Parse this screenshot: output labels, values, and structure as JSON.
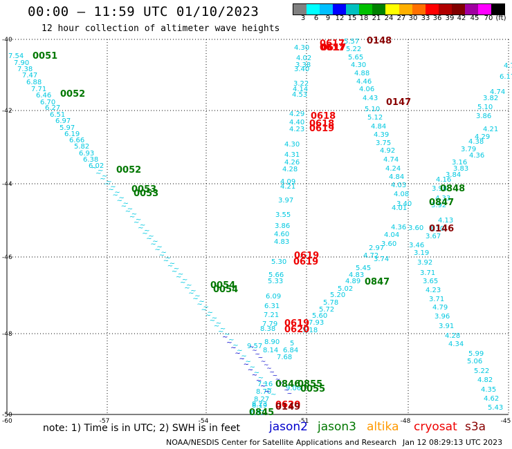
{
  "header": {
    "title": "00:00 – 11:59 UTC 01/10/2023",
    "subtitle": "12 hour collection of altimeter wave heights"
  },
  "scale": {
    "colors": [
      "#808080",
      "#00ffff",
      "#00bfff",
      "#0000ff",
      "#00c0c0",
      "#00c000",
      "#008000",
      "#ffff00",
      "#ffb000",
      "#ff7000",
      "#ff0000",
      "#b00000",
      "#800000",
      "#a000a0",
      "#ff00ff",
      "#000000"
    ],
    "labels": [
      "3",
      "6",
      "9",
      "12",
      "15",
      "18",
      "21",
      "24",
      "27",
      "30",
      "33",
      "36",
      "39",
      "42",
      "45",
      "70",
      "(ft)"
    ]
  },
  "map": {
    "lon_ticks": [
      "-57",
      "-54",
      "-51",
      "-48",
      "-45"
    ],
    "lat_ticks": [
      "-40",
      "-42",
      "-44",
      "-46",
      "-48",
      "-50"
    ],
    "corner_label": "-60"
  },
  "swh_values": [
    "7.54",
    "7.90",
    "7.38",
    "7.47",
    "6.88",
    "7.71",
    "6.46",
    "6.70",
    "6.27",
    "6.51",
    "6.97",
    "5.97",
    "6.19",
    "6.66",
    "5.82",
    "6.93",
    "6.38",
    "6.02",
    "5.57",
    "5.22",
    "5.65",
    "4.30",
    "4.88",
    "4.46",
    "4.06",
    "4.43",
    "5.10",
    "5.12",
    "4.84",
    "4.39",
    "3.75",
    "4.92",
    "4.74",
    "4.24",
    "4.84",
    "4.03",
    "4.08",
    "3.40",
    "4.01",
    "4.36",
    "4.04",
    "3.60",
    "3.74",
    "4.72",
    "5.45",
    "4.83",
    "4.89",
    "5.02",
    "5.20",
    "5.78",
    "5.72",
    "5.60",
    "7.93",
    "5.18",
    "4.30",
    "4.02",
    "3.38",
    "3.40",
    "3.22",
    "4.14",
    "4.53",
    "4.29",
    "4.40",
    "4.23",
    "4.30",
    "4.31",
    "4.26",
    "4.28",
    "4.09",
    "4.21",
    "3.97",
    "3.55",
    "3.86",
    "4.60",
    "4.83",
    "5.30",
    "5.66",
    "5.33",
    "6.09",
    "6.31",
    "7.21",
    "7.79",
    "8.38",
    "8.90",
    "6.84",
    "7.68",
    "5",
    "4.7",
    "6.17",
    "4.74",
    "3.82",
    "5.10",
    "3.86",
    "4.21",
    "4.29",
    "4.38",
    "3.79",
    "4.36",
    "3.16",
    "3.83",
    "3.84",
    "4.16",
    "3.98",
    "4.33",
    "3.92",
    "4.13",
    "3.30",
    "3.67",
    "3.60",
    "3.46",
    "3.19",
    "3.92",
    "3.71",
    "3.65",
    "4.23",
    "3.71",
    "4.79",
    "3.96",
    "3.91",
    "4.28",
    "4.34",
    "5.99",
    "5.06",
    "5.22",
    "4.82",
    "4.35",
    "4.62",
    "5.43",
    "2.97",
    "7.16",
    "8.70",
    "8.27",
    "8.19",
    "7.67",
    "8.23",
    "8.14",
    "9.57",
    "9.06"
  ],
  "sat_times": [
    {
      "label": "0051",
      "sat": "jason3"
    },
    {
      "label": "0052",
      "sat": "jason3"
    },
    {
      "label": "0052",
      "sat": "jason3"
    },
    {
      "label": "0053",
      "sat": "jason3"
    },
    {
      "label": "0053",
      "sat": "jason3"
    },
    {
      "label": "0054",
      "sat": "jason3"
    },
    {
      "label": "0054",
      "sat": "jason3"
    },
    {
      "label": "0846",
      "sat": "jason3"
    },
    {
      "label": "0855",
      "sat": "jason3"
    },
    {
      "label": "0055",
      "sat": "jason3"
    },
    {
      "label": "0845",
      "sat": "jason3"
    },
    {
      "label": "0848",
      "sat": "jason3"
    },
    {
      "label": "0847",
      "sat": "jason3"
    },
    {
      "label": "0847",
      "sat": "jason3"
    },
    {
      "label": "0617",
      "sat": "cryosat"
    },
    {
      "label": "0617",
      "sat": "cryosat"
    },
    {
      "label": "0617",
      "sat": "cryosat"
    },
    {
      "label": "0618",
      "sat": "cryosat"
    },
    {
      "label": "0618",
      "sat": "cryosat"
    },
    {
      "label": "0619",
      "sat": "cryosat"
    },
    {
      "label": "0619",
      "sat": "cryosat"
    },
    {
      "label": "0619",
      "sat": "cryosat"
    },
    {
      "label": "0619",
      "sat": "cryosat"
    },
    {
      "label": "0620",
      "sat": "cryosat"
    },
    {
      "label": "0620",
      "sat": "cryosat"
    },
    {
      "label": "0149",
      "sat": "s3a"
    },
    {
      "label": "0148",
      "sat": "s3a"
    },
    {
      "label": "0147",
      "sat": "s3a"
    },
    {
      "label": "0146",
      "sat": "s3a"
    }
  ],
  "footer": {
    "note": "note: 1) Time is in UTC; 2) SWH is in feet",
    "satellites": [
      {
        "name": "jason2",
        "color": "#0000cc"
      },
      {
        "name": "jason3",
        "color": "#007700"
      },
      {
        "name": "altika",
        "color": "#ff9900"
      },
      {
        "name": "cryosat",
        "color": "#ee0000"
      },
      {
        "name": "s3a",
        "color": "#880000"
      }
    ],
    "credit_left": "NOAA/NESDIS Center for Satellite Applications and Research",
    "credit_right": "Jan 12 08:29:13 UTC 2023"
  }
}
